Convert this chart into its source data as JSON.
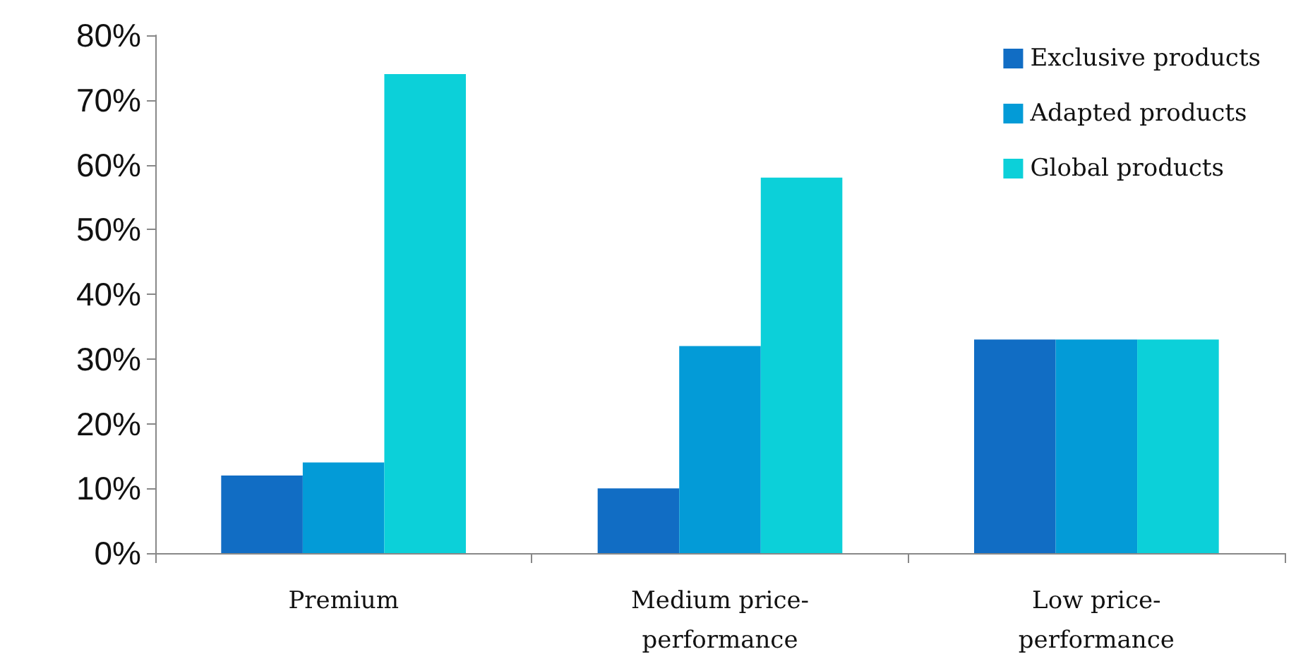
{
  "chart_data": {
    "type": "bar",
    "categories": [
      "Premium",
      "Medium price-performance",
      "Low price-performance"
    ],
    "series": [
      {
        "name": "Exclusive products",
        "color": "#116dc4",
        "values": [
          12,
          10,
          33
        ]
      },
      {
        "name": "Adapted products",
        "color": "#039bd7",
        "values": [
          14,
          32,
          33
        ]
      },
      {
        "name": "Global products",
        "color": "#0cd0d9",
        "values": [
          74,
          58,
          33
        ]
      }
    ],
    "ylim": [
      0,
      80
    ],
    "yticks": [
      {
        "value": 0,
        "label": "0%"
      },
      {
        "value": 10,
        "label": "10%"
      },
      {
        "value": 20,
        "label": "20%"
      },
      {
        "value": 30,
        "label": "30%"
      },
      {
        "value": 40,
        "label": "40%"
      },
      {
        "value": 50,
        "label": "50%"
      },
      {
        "value": 60,
        "label": "60%"
      },
      {
        "value": 70,
        "label": "70%"
      },
      {
        "value": 80,
        "label": "80%"
      }
    ],
    "grid": false,
    "legend": "top right"
  }
}
